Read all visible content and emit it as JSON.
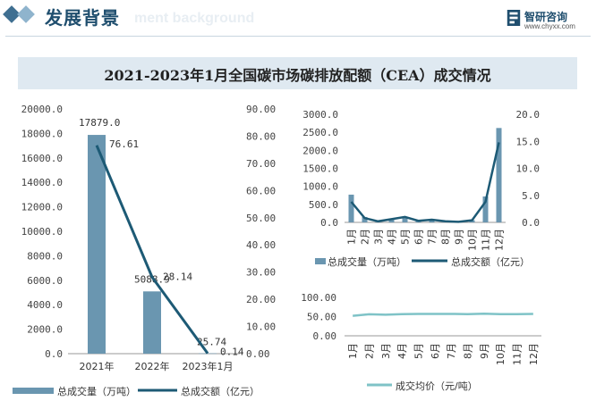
{
  "header": {
    "title": "发展背景",
    "subtitle_en": "ment background",
    "brand_name": "智研咨询",
    "brand_url": "www.chyxx.com"
  },
  "banner": {
    "title": "2021-2023年1月全国碳市场碳排放配额（CEA）成交情况"
  },
  "colors": {
    "bar": "#6a96b0",
    "line": "#1d5a75",
    "price_line": "#7fc3c7",
    "accent": "#1f4e6e"
  },
  "chart_data": [
    {
      "type": "bar",
      "categories": [
        "2021年",
        "2022年",
        "2023年1月"
      ],
      "series": [
        {
          "name": "总成交量（万吨）",
          "type": "bar",
          "axis": "left",
          "values": [
            17879.0,
            5088.9,
            25.74
          ]
        },
        {
          "name": "总成交额（亿元）",
          "type": "line",
          "axis": "right",
          "values": [
            76.61,
            28.14,
            0.14
          ]
        }
      ],
      "data_labels": {
        "bar": [
          "17879.0",
          "5088.9",
          "25.74"
        ],
        "line": [
          "76.61",
          "28.14",
          "0.14"
        ]
      },
      "left_axis": {
        "ylim": [
          0,
          20000
        ],
        "ticks": [
          "0.0",
          "2000.0",
          "4000.0",
          "6000.0",
          "8000.0",
          "10000.0",
          "12000.0",
          "14000.0",
          "16000.0",
          "18000.0",
          "20000.0"
        ]
      },
      "right_axis": {
        "ylim": [
          0,
          90
        ],
        "ticks": [
          "0.00",
          "10.00",
          "20.00",
          "30.00",
          "40.00",
          "50.00",
          "60.00",
          "70.00",
          "80.00",
          "90.00"
        ]
      },
      "legend": [
        "总成交量（万吨）",
        "总成交额（亿元）"
      ],
      "legend_position": "bottom"
    },
    {
      "type": "bar",
      "categories": [
        "1月",
        "2月",
        "3月",
        "4月",
        "5月",
        "6月",
        "7月",
        "8月",
        "9月",
        "10月",
        "11月",
        "12月"
      ],
      "series": [
        {
          "name": "总成交量（万吨）",
          "type": "bar",
          "axis": "left",
          "values": [
            770,
            150,
            30,
            110,
            150,
            40,
            80,
            30,
            20,
            60,
            720,
            2620
          ]
        },
        {
          "name": "总成交额（亿元）",
          "type": "line",
          "axis": "right",
          "values": [
            3.8,
            0.8,
            0.2,
            0.6,
            1.0,
            0.3,
            0.5,
            0.2,
            0.1,
            0.4,
            3.8,
            14.8
          ]
        }
      ],
      "left_axis": {
        "ylim": [
          0,
          3000
        ],
        "ticks": [
          "0.0",
          "500.0",
          "1000.0",
          "1500.0",
          "2000.0",
          "2500.0",
          "3000.0"
        ]
      },
      "right_axis": {
        "ylim": [
          0,
          20
        ],
        "ticks": [
          "0.0",
          "5.0",
          "10.0",
          "15.0",
          "20.0"
        ]
      },
      "legend": [
        "总成交量（万吨）",
        "总成交额（亿元）"
      ],
      "legend_position": "bottom"
    },
    {
      "type": "line",
      "categories": [
        "1月",
        "2月",
        "3月",
        "4月",
        "5月",
        "6月",
        "7月",
        "8月",
        "9月",
        "10月",
        "11月",
        "12月"
      ],
      "series": [
        {
          "name": "成交均价（元/吨）",
          "values": [
            52.0,
            56.0,
            55.0,
            56.5,
            57.0,
            57.0,
            57.0,
            56.5,
            57.5,
            56.5,
            56.5,
            57.0
          ]
        }
      ],
      "left_axis": {
        "ylim": [
          0,
          100
        ],
        "ticks": [
          "0.00",
          "50.00",
          "100.00"
        ]
      },
      "legend": [
        "成交均价（元/吨）"
      ],
      "legend_position": "bottom"
    }
  ]
}
